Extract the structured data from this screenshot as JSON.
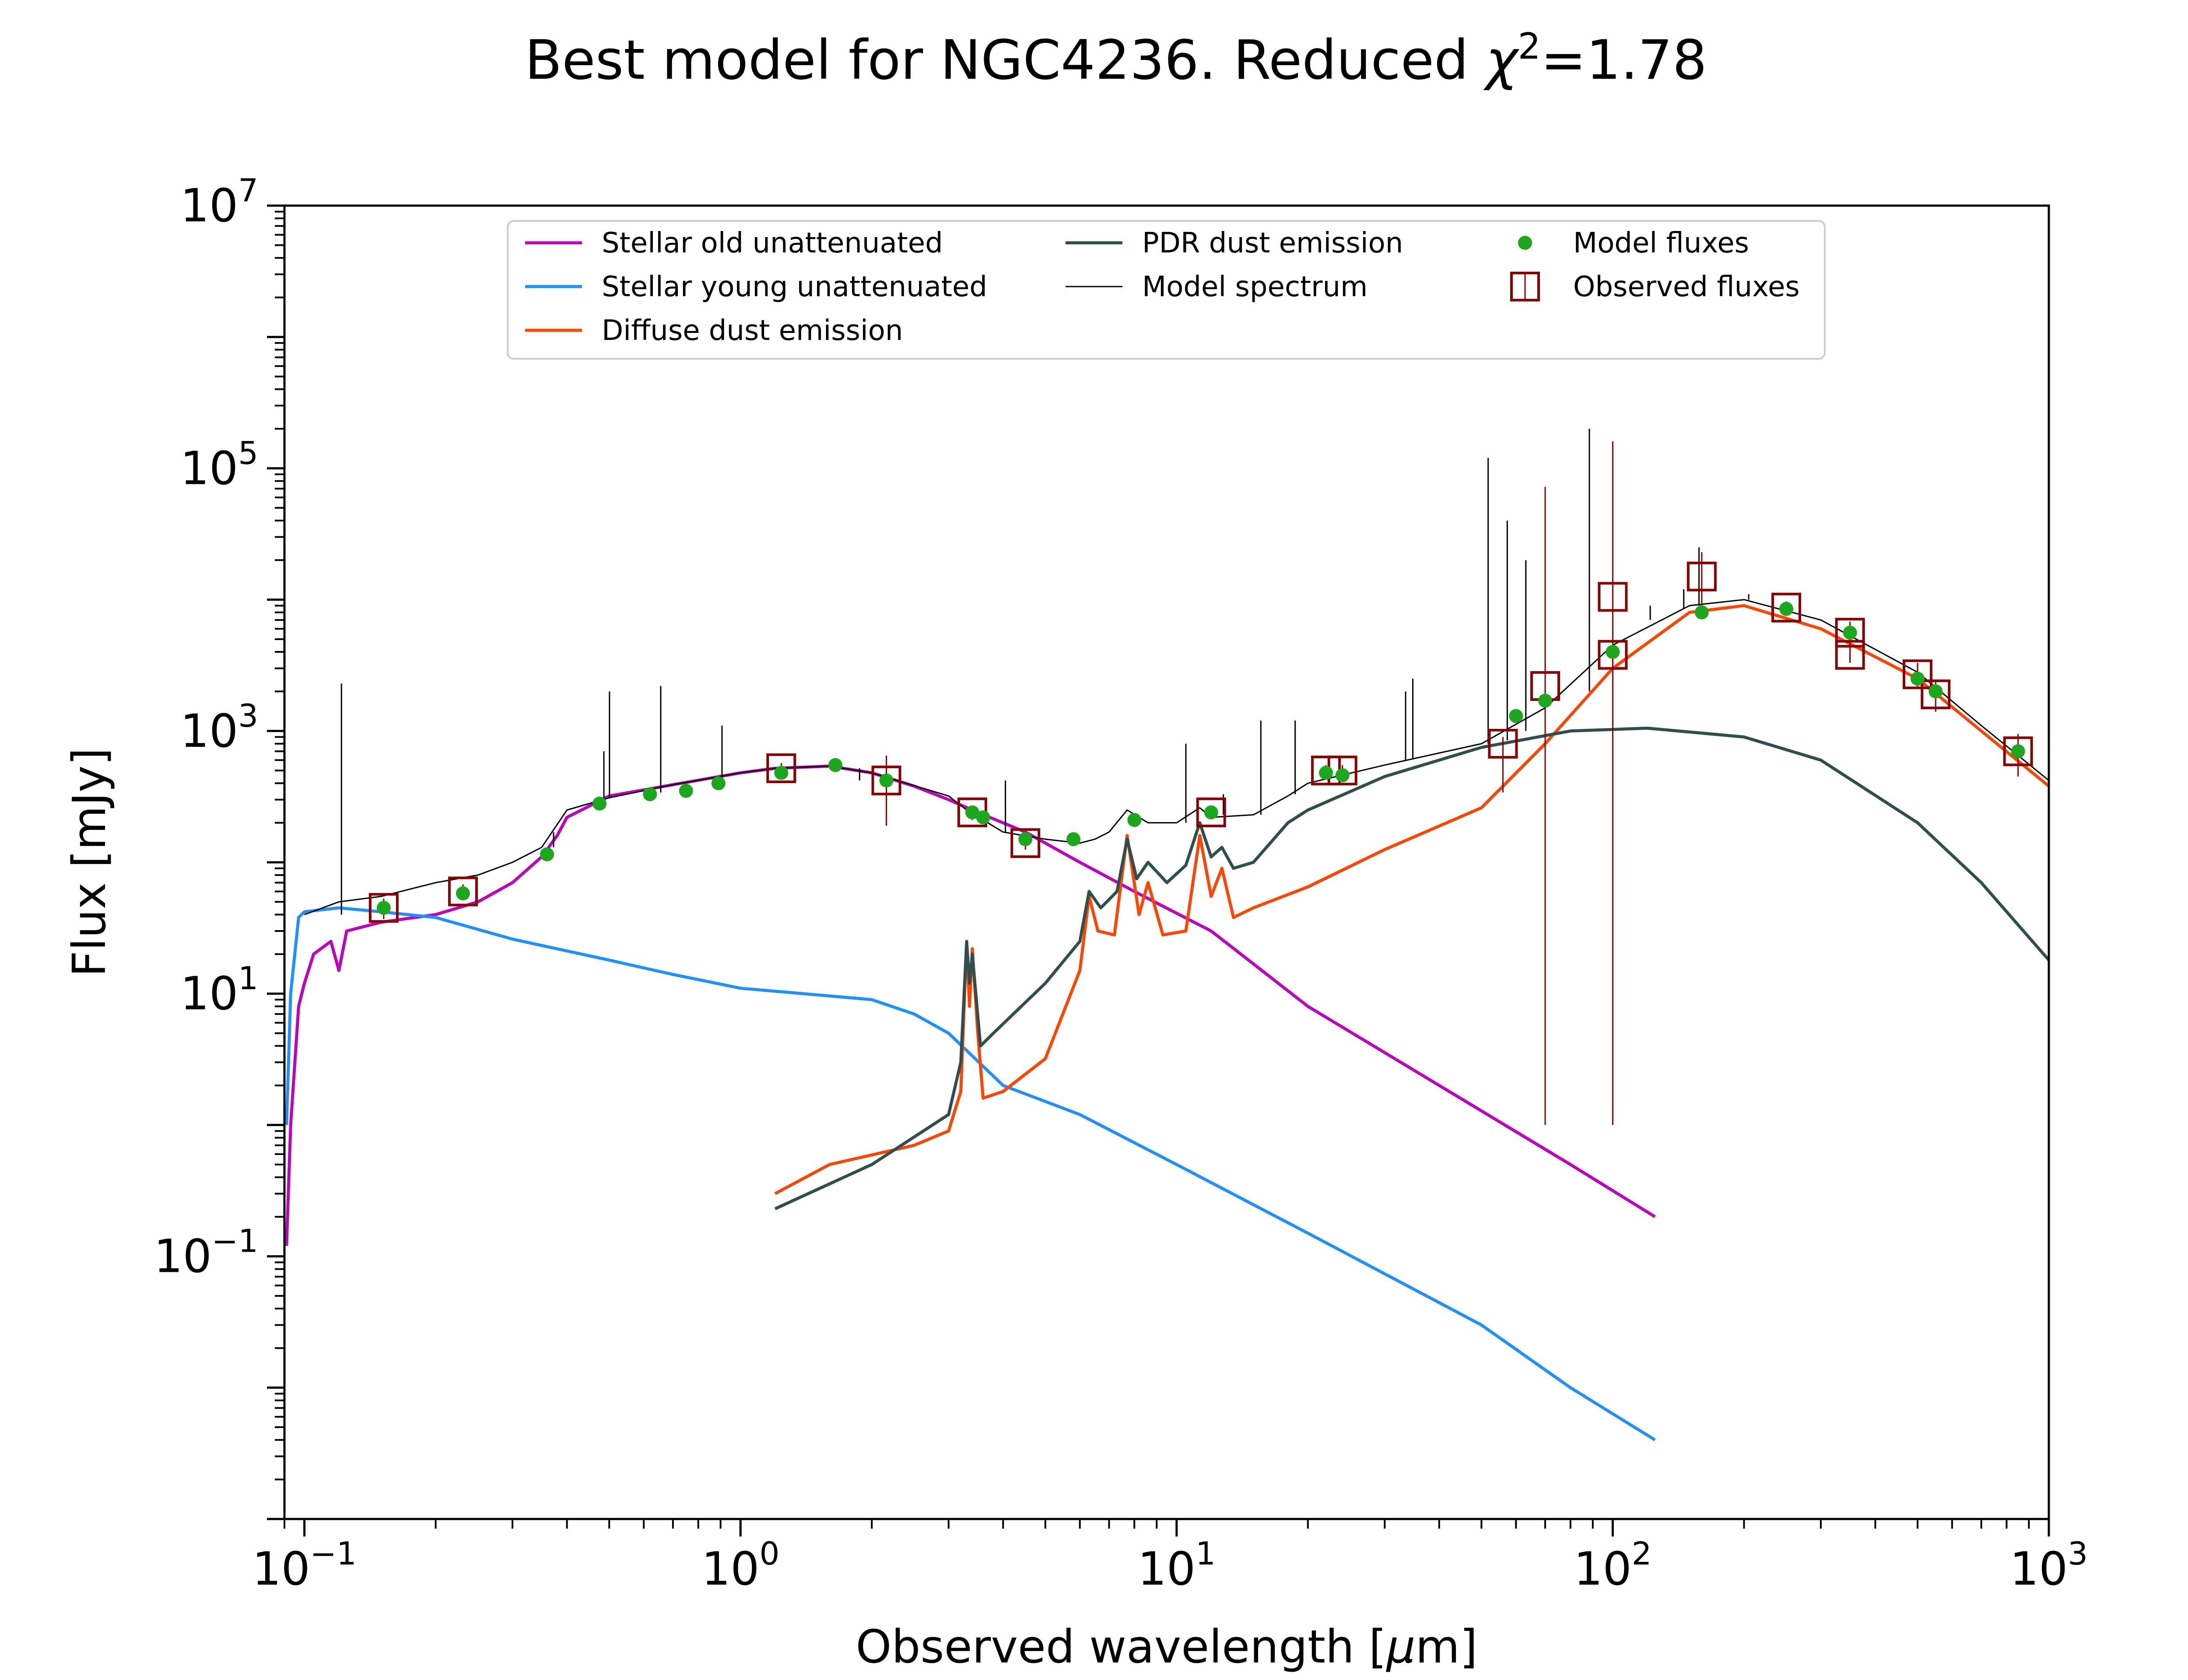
{
  "chart_data": {
    "type": "line",
    "title": {
      "prefix": "Best model for NGC4236. Reduced ",
      "symbol": "χ",
      "superscript": "2",
      "suffix": "=1.78"
    },
    "xlabel": {
      "prefix": "Observed wavelength [",
      "mu": "μ",
      "suffix": "m]"
    },
    "ylabel": "Flux [mJy]",
    "xscale": "log",
    "yscale": "log",
    "xlim": [
      0.09,
      1000
    ],
    "ylim": [
      0.001,
      10000000
    ],
    "grid": false,
    "legend_placement": "top-center",
    "x_ticks": [
      {
        "value": 0.1,
        "base": "10",
        "exp": "−1"
      },
      {
        "value": 1,
        "base": "10",
        "exp": "0"
      },
      {
        "value": 10,
        "base": "10",
        "exp": "1"
      },
      {
        "value": 100,
        "base": "10",
        "exp": "2"
      },
      {
        "value": 1000,
        "base": "10",
        "exp": "3"
      }
    ],
    "y_ticks": [
      {
        "value": 0.1,
        "base": "10",
        "exp": "−1"
      },
      {
        "value": 10,
        "base": "10",
        "exp": "1"
      },
      {
        "value": 1000,
        "base": "10",
        "exp": "3"
      },
      {
        "value": 100000,
        "base": "10",
        "exp": "5"
      },
      {
        "value": 10000000,
        "base": "10",
        "exp": "7"
      }
    ],
    "legend": [
      {
        "label": "Stellar old unattenuated",
        "kind": "line",
        "color": "#bf00bf",
        "width": 7
      },
      {
        "label": "Stellar young unattenuated",
        "kind": "line",
        "color": "#1e90ff",
        "width": 7
      },
      {
        "label": "Diffuse dust emission",
        "kind": "line",
        "color": "#ff4500",
        "width": 7
      },
      {
        "label": "PDR dust emission",
        "kind": "line",
        "color": "#2f4f4f",
        "width": 7
      },
      {
        "label": "Model spectrum",
        "kind": "line",
        "color": "#000000",
        "width": 3
      },
      {
        "label": "Model fluxes",
        "kind": "dot",
        "color": "#1ca81c"
      },
      {
        "label": "Observed fluxes",
        "kind": "square",
        "color": "#8b0000"
      }
    ],
    "series": [
      {
        "name": "Stellar old unattenuated",
        "color": "#bf00bf",
        "width": 7,
        "points": [
          [
            0.091,
            0.12
          ],
          [
            0.093,
            1
          ],
          [
            0.097,
            8
          ],
          [
            0.1,
            12
          ],
          [
            0.105,
            20
          ],
          [
            0.115,
            25
          ],
          [
            0.12,
            15
          ],
          [
            0.125,
            30
          ],
          [
            0.15,
            35
          ],
          [
            0.2,
            40
          ],
          [
            0.25,
            50
          ],
          [
            0.3,
            70
          ],
          [
            0.35,
            110
          ],
          [
            0.38,
            160
          ],
          [
            0.4,
            220
          ],
          [
            0.5,
            320
          ],
          [
            0.7,
            390
          ],
          [
            1,
            480
          ],
          [
            1.2,
            520
          ],
          [
            1.6,
            540
          ],
          [
            2,
            480
          ],
          [
            2.5,
            380
          ],
          [
            3,
            300
          ],
          [
            3.5,
            240
          ],
          [
            4.5,
            170
          ],
          [
            6,
            100
          ],
          [
            8,
            60
          ],
          [
            12,
            30
          ],
          [
            20,
            8
          ],
          [
            40,
            2
          ],
          [
            80,
            0.5
          ],
          [
            125,
            0.2
          ]
        ]
      },
      {
        "name": "Stellar young unattenuated",
        "color": "#1e90ff",
        "width": 7,
        "points": [
          [
            0.091,
            1
          ],
          [
            0.093,
            10
          ],
          [
            0.097,
            38
          ],
          [
            0.1,
            42
          ],
          [
            0.12,
            45
          ],
          [
            0.15,
            42
          ],
          [
            0.2,
            38
          ],
          [
            0.3,
            26
          ],
          [
            0.5,
            18
          ],
          [
            0.7,
            14
          ],
          [
            1,
            11
          ],
          [
            2,
            9
          ],
          [
            2.5,
            7
          ],
          [
            3,
            5
          ],
          [
            4,
            2
          ],
          [
            6,
            1.2
          ],
          [
            10,
            0.5
          ],
          [
            20,
            0.15
          ],
          [
            50,
            0.03
          ],
          [
            80,
            0.01
          ],
          [
            125,
            0.004
          ]
        ]
      },
      {
        "name": "Diffuse dust emission",
        "color": "#ff4500",
        "width": 7,
        "points": [
          [
            1.2,
            0.3
          ],
          [
            1.6,
            0.5
          ],
          [
            2.5,
            0.7
          ],
          [
            3.0,
            0.9
          ],
          [
            3.2,
            1.8
          ],
          [
            3.3,
            25
          ],
          [
            3.35,
            8
          ],
          [
            3.4,
            22
          ],
          [
            3.5,
            5
          ],
          [
            3.6,
            1.6
          ],
          [
            4,
            1.8
          ],
          [
            5,
            3.2
          ],
          [
            6,
            15
          ],
          [
            6.3,
            55
          ],
          [
            6.6,
            30
          ],
          [
            7.2,
            28
          ],
          [
            7.7,
            160
          ],
          [
            8.2,
            40
          ],
          [
            8.6,
            70
          ],
          [
            9.3,
            28
          ],
          [
            10.5,
            30
          ],
          [
            11.3,
            160
          ],
          [
            12,
            55
          ],
          [
            12.7,
            90
          ],
          [
            13.5,
            38
          ],
          [
            15,
            45
          ],
          [
            20,
            65
          ],
          [
            30,
            125
          ],
          [
            50,
            260
          ],
          [
            70,
            800
          ],
          [
            100,
            3000
          ],
          [
            150,
            8000
          ],
          [
            200,
            9000
          ],
          [
            300,
            6000
          ],
          [
            500,
            2500
          ],
          [
            700,
            1000
          ],
          [
            1000,
            380
          ]
        ]
      },
      {
        "name": "PDR dust emission",
        "color": "#2f4f4f",
        "width": 7,
        "points": [
          [
            1.2,
            0.23
          ],
          [
            2,
            0.5
          ],
          [
            3.0,
            1.2
          ],
          [
            3.2,
            3
          ],
          [
            3.3,
            25
          ],
          [
            3.35,
            12
          ],
          [
            3.4,
            20
          ],
          [
            3.55,
            4
          ],
          [
            3.8,
            5
          ],
          [
            5,
            12
          ],
          [
            6,
            25
          ],
          [
            6.3,
            60
          ],
          [
            6.7,
            45
          ],
          [
            7.3,
            60
          ],
          [
            7.7,
            150
          ],
          [
            8.1,
            75
          ],
          [
            8.6,
            100
          ],
          [
            9.5,
            70
          ],
          [
            10.5,
            95
          ],
          [
            11.3,
            200
          ],
          [
            12,
            110
          ],
          [
            12.7,
            130
          ],
          [
            13.5,
            90
          ],
          [
            15,
            100
          ],
          [
            18,
            200
          ],
          [
            20,
            250
          ],
          [
            30,
            450
          ],
          [
            50,
            750
          ],
          [
            80,
            1000
          ],
          [
            120,
            1050
          ],
          [
            200,
            900
          ],
          [
            300,
            600
          ],
          [
            500,
            200
          ],
          [
            700,
            70
          ],
          [
            1000,
            18
          ]
        ]
      },
      {
        "name": "Model spectrum",
        "color": "#000000",
        "width": 3,
        "points": [
          [
            0.1,
            40
          ],
          [
            0.12,
            50
          ],
          [
            0.15,
            55
          ],
          [
            0.2,
            70
          ],
          [
            0.25,
            80
          ],
          [
            0.3,
            100
          ],
          [
            0.35,
            130
          ],
          [
            0.4,
            250
          ],
          [
            0.5,
            310
          ],
          [
            0.7,
            390
          ],
          [
            1,
            480
          ],
          [
            1.2,
            520
          ],
          [
            1.6,
            540
          ],
          [
            2,
            480
          ],
          [
            3,
            320
          ],
          [
            3.3,
            250
          ],
          [
            4,
            170
          ],
          [
            5,
            150
          ],
          [
            6,
            140
          ],
          [
            6.5,
            150
          ],
          [
            7,
            170
          ],
          [
            7.7,
            250
          ],
          [
            8.6,
            200
          ],
          [
            10,
            200
          ],
          [
            11.3,
            260
          ],
          [
            12,
            220
          ],
          [
            15,
            230
          ],
          [
            18,
            320
          ],
          [
            20,
            400
          ],
          [
            30,
            550
          ],
          [
            50,
            800
          ],
          [
            70,
            1500
          ],
          [
            100,
            4500
          ],
          [
            150,
            9000
          ],
          [
            200,
            10000
          ],
          [
            300,
            7000
          ],
          [
            500,
            2800
          ],
          [
            700,
            1100
          ],
          [
            1000,
            420
          ]
        ]
      },
      {
        "name": "Model spectrum emission lines",
        "color": "#000000",
        "width": 3,
        "segments": [
          [
            0.1216,
            40,
            2300
          ],
          [
            0.3727,
            130,
            170
          ],
          [
            0.4861,
            310,
            700
          ],
          [
            0.5007,
            310,
            2000
          ],
          [
            0.6563,
            340,
            2200
          ],
          [
            0.9069,
            420,
            1100
          ],
          [
            1.875,
            520,
            420
          ],
          [
            4.05,
            170,
            420
          ],
          [
            10.5,
            200,
            800
          ],
          [
            12.8,
            230,
            330
          ],
          [
            15.6,
            230,
            1200
          ],
          [
            18.7,
            330,
            1200
          ],
          [
            33.5,
            600,
            2000
          ],
          [
            34.8,
            620,
            2500
          ],
          [
            51.8,
            800,
            120000
          ],
          [
            57.3,
            850,
            40000
          ],
          [
            63.2,
            1000,
            20000
          ],
          [
            88.4,
            2000,
            200000
          ],
          [
            121.9,
            7000,
            9000
          ],
          [
            145.5,
            8500,
            12000
          ],
          [
            157.7,
            9000,
            25000
          ],
          [
            205,
            10000,
            11000
          ]
        ]
      }
    ],
    "model_fluxes": {
      "color": "#1ca81c",
      "x": [
        0.152,
        0.231,
        0.36,
        0.475,
        0.62,
        0.75,
        0.89,
        1.24,
        1.65,
        2.16,
        3.4,
        3.6,
        4.5,
        5.8,
        8.0,
        12,
        22,
        24,
        60,
        70,
        100,
        160,
        250,
        350,
        500,
        550,
        850
      ],
      "y": [
        45,
        58,
        115,
        280,
        330,
        350,
        400,
        480,
        550,
        420,
        240,
        220,
        150,
        150,
        210,
        240,
        480,
        460,
        1300,
        1700,
        4000,
        8000,
        8500,
        5600,
        2500,
        2000,
        700
      ]
    },
    "observed_fluxes": {
      "color": "#8b0000",
      "x": [
        0.152,
        0.231,
        1.24,
        2.16,
        3.4,
        4.5,
        12,
        22,
        24,
        56,
        70,
        100,
        100,
        160,
        250,
        350,
        350,
        500,
        550,
        850
      ],
      "y": [
        45,
        60,
        520,
        420,
        240,
        140,
        240,
        500,
        500,
        800,
        2200,
        10500,
        3800,
        15000,
        8700,
        5600,
        3800,
        2700,
        1900,
        700
      ],
      "yerr_low": [
        8,
        8,
        50,
        230,
        30,
        15,
        25,
        50,
        50,
        460,
        2199,
        10499,
        700,
        6000,
        1000,
        2200,
        500,
        600,
        500,
        250
      ],
      "yerr_high": [
        8,
        8,
        50,
        230,
        30,
        15,
        25,
        50,
        50,
        100,
        70000,
        150000,
        700,
        8000,
        1000,
        1200,
        400,
        600,
        500,
        250
      ]
    }
  }
}
